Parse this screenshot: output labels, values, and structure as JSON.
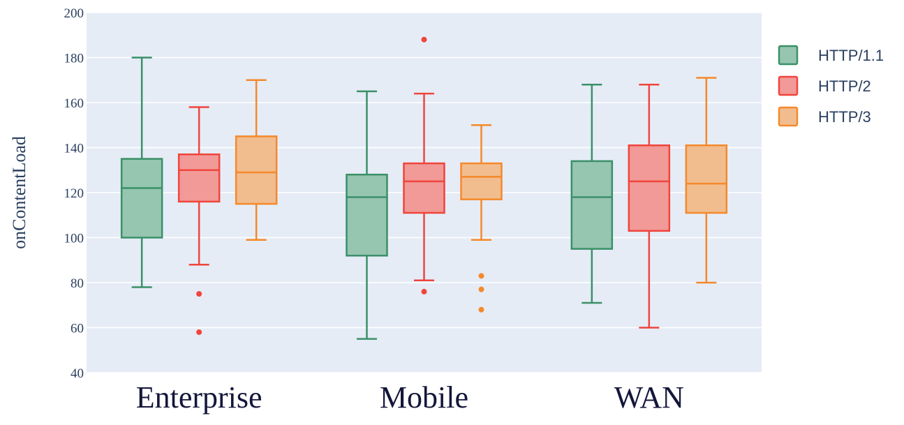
{
  "chart_data": {
    "type": "box",
    "ylabel": "onContentLoad",
    "ylim": [
      40,
      200
    ],
    "yticks": [
      40,
      60,
      80,
      100,
      120,
      140,
      160,
      180,
      200
    ],
    "categories": [
      "Enterprise",
      "Mobile",
      "WAN"
    ],
    "grid": true,
    "legend_position": "top-right",
    "series": [
      {
        "name": "HTTP/1.1",
        "color": "#3a9068",
        "fill": "#96c5b0",
        "boxes": [
          {
            "min": 78,
            "q1": 100,
            "median": 122,
            "q3": 135,
            "max": 180,
            "outliers": []
          },
          {
            "min": 55,
            "q1": 92,
            "median": 118,
            "q3": 128,
            "max": 165,
            "outliers": []
          },
          {
            "min": 71,
            "q1": 95,
            "median": 118,
            "q3": 134,
            "max": 168,
            "outliers": []
          }
        ]
      },
      {
        "name": "HTTP/2",
        "color": "#f0453c",
        "fill": "#f19a98",
        "boxes": [
          {
            "min": 88,
            "q1": 116,
            "median": 130,
            "q3": 137,
            "max": 158,
            "outliers": [
              75,
              58
            ]
          },
          {
            "min": 81,
            "q1": 111,
            "median": 125,
            "q3": 133,
            "max": 164,
            "outliers": [
              188,
              76
            ]
          },
          {
            "min": 60,
            "q1": 103,
            "median": 125,
            "q3": 141,
            "max": 168,
            "outliers": []
          }
        ]
      },
      {
        "name": "HTTP/3",
        "color": "#f5892a",
        "fill": "#f1bd8f",
        "boxes": [
          {
            "min": 99,
            "q1": 115,
            "median": 129,
            "q3": 145,
            "max": 170,
            "outliers": []
          },
          {
            "min": 99,
            "q1": 117,
            "median": 127,
            "q3": 133,
            "max": 150,
            "outliers": [
              83,
              77,
              68
            ]
          },
          {
            "min": 80,
            "q1": 111,
            "median": 124,
            "q3": 141,
            "max": 171,
            "outliers": []
          }
        ]
      }
    ]
  }
}
